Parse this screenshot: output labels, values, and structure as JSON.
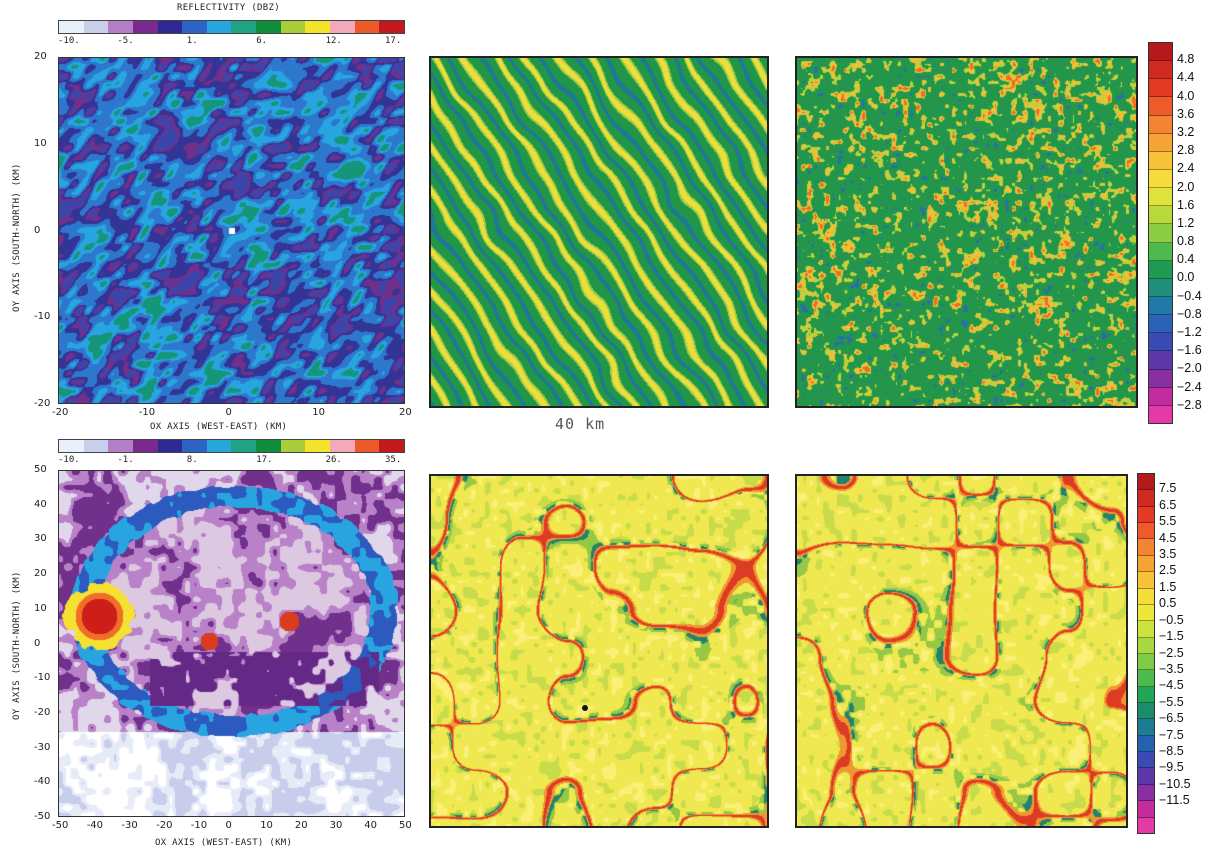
{
  "top_left": {
    "colorbar_title": "REFLECTIVITY (DBZ)",
    "colorbar_colors": [
      "#e8f1fb",
      "#c9cfea",
      "#b47fc7",
      "#7a2a8e",
      "#2e2a93",
      "#2d63c4",
      "#27a6de",
      "#1fa382",
      "#0f8c3c",
      "#a8cc3a",
      "#f3e32b",
      "#f3a9b9",
      "#ec5a2a",
      "#c2191c"
    ],
    "colorbar_ticks": [
      "-10.",
      "-5.",
      "1.",
      "6.",
      "12.",
      "17."
    ],
    "xticks": [
      "-20",
      "-10",
      "0",
      "10",
      "20"
    ],
    "yticks": [
      "20",
      "10",
      "0",
      "-10",
      "-20"
    ],
    "xlabel": "OX AXIS (WEST-EAST) (KM)",
    "ylabel": "OY AXIS (SOUTH-NORTH) (KM)"
  },
  "bottom_left": {
    "colorbar_colors": [
      "#e8f1fb",
      "#c9cfea",
      "#b47fc7",
      "#7a2a8e",
      "#2e2a93",
      "#2d63c4",
      "#27a6de",
      "#1fa382",
      "#0f8c3c",
      "#a8cc3a",
      "#f3e32b",
      "#f3a9b9",
      "#ec5a2a",
      "#c2191c"
    ],
    "colorbar_ticks": [
      "-10.",
      "-1.",
      "8.",
      "17.",
      "26.",
      "35."
    ],
    "xticks": [
      "-50",
      "-40",
      "-30",
      "-20",
      "-10",
      "0",
      "10",
      "20",
      "30",
      "40",
      "50"
    ],
    "yticks": [
      "50",
      "40",
      "30",
      "20",
      "10",
      "0",
      "-10",
      "-20",
      "-30",
      "-40",
      "-50"
    ],
    "xlabel": "OX AXIS (WEST-EAST) (KM)",
    "ylabel": "OY AXIS (SOUTH-NORTH) (KM)"
  },
  "scale_label": "40 km",
  "colorbar_top": {
    "labels": [
      "4.8",
      "4.4",
      "4.0",
      "3.6",
      "3.2",
      "2.8",
      "2.4",
      "2.0",
      "1.6",
      "1.2",
      "0.8",
      "0.4",
      "0.0",
      "−0.4",
      "−0.8",
      "−1.2",
      "−1.6",
      "−2.0",
      "−2.4",
      "−2.8"
    ],
    "colors": [
      "#b5191d",
      "#cf2a21",
      "#e23a24",
      "#ee5a2a",
      "#f38431",
      "#f6a335",
      "#f8c238",
      "#f6dc3b",
      "#dfe23a",
      "#b8d93c",
      "#8ccd44",
      "#4dba4d",
      "#1f9a52",
      "#1f8f7c",
      "#2179a8",
      "#2a62b8",
      "#3a4cb4",
      "#5c38a8",
      "#8a2fa3",
      "#c22c9c",
      "#e43aa8"
    ]
  },
  "colorbar_bottom": {
    "labels": [
      "7.5",
      "6.5",
      "5.5",
      "4.5",
      "3.5",
      "2.5",
      "1.5",
      "0.5",
      "−0.5",
      "−1.5",
      "−2.5",
      "−3.5",
      "−4.5",
      "−5.5",
      "−6.5",
      "−7.5",
      "−8.5",
      "−9.5",
      "−10.5",
      "−11.5"
    ],
    "colors": [
      "#b5191d",
      "#cf2a21",
      "#e23a24",
      "#ee5a2a",
      "#f38431",
      "#f6a335",
      "#f8c238",
      "#f6dc3b",
      "#eee63a",
      "#cde23c",
      "#a8d83f",
      "#7ecb46",
      "#4dba4d",
      "#23a456",
      "#1a8e6c",
      "#1f7a93",
      "#2462ad",
      "#3a4cb4",
      "#5c38a8",
      "#8a2fa3",
      "#c22c9c",
      "#e43aa8"
    ]
  },
  "icons": {
    "marker": "station-marker-icon"
  }
}
